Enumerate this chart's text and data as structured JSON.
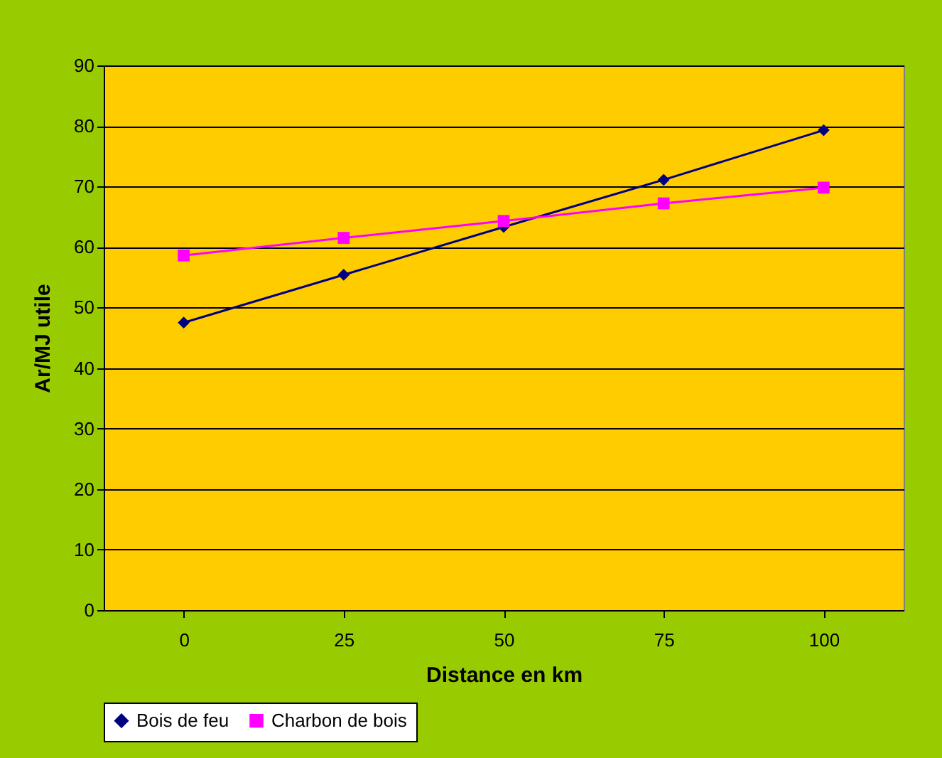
{
  "chart_data": {
    "type": "line",
    "xlabel": "Distance en km",
    "ylabel": "Ar/MJ utile",
    "categories": [
      "0",
      "25",
      "50",
      "75",
      "100"
    ],
    "series": [
      {
        "name": "Bois de feu",
        "color": "#000080",
        "marker": "diamond",
        "values": [
          47.5,
          55.4,
          63.3,
          71.1,
          79.3
        ]
      },
      {
        "name": "Charbon de bois",
        "color": "#ff00ff",
        "marker": "square",
        "values": [
          58.6,
          61.5,
          64.3,
          67.2,
          69.8
        ]
      }
    ],
    "ylim": [
      0,
      90
    ],
    "yticks": [
      0,
      10,
      20,
      30,
      40,
      50,
      60,
      70,
      80,
      90
    ],
    "grid": "y",
    "legend": "bottom",
    "line_style": "solid"
  }
}
